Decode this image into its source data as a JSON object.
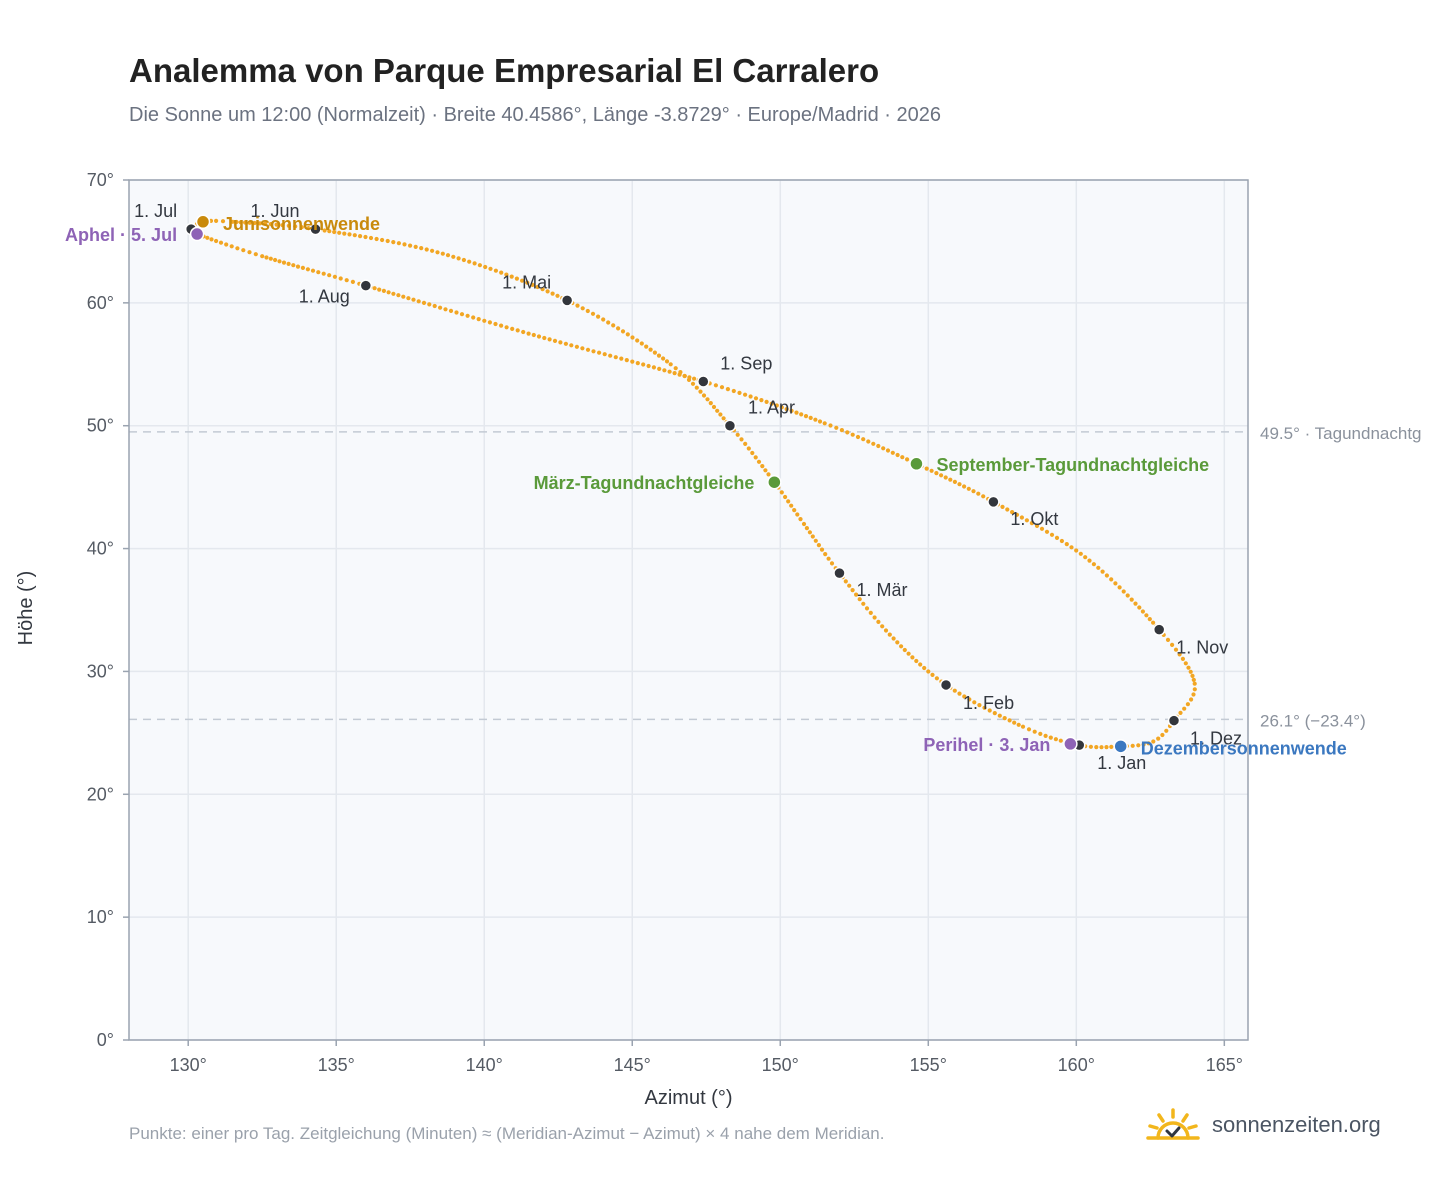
{
  "title": "Analemma von Parque Empresarial El Carralero",
  "subtitle": "Die Sonne um 12:00 (Normalzeit) · Breite 40.4586°, Länge -3.8729° · Europe/Madrid · 2026",
  "footnote": "Punkte: einer pro Tag. Zeitgleichung (Minuten) ≈ (Meridian-Azimut − Azimut) × 4 nahe dem Meridian.",
  "brand": {
    "name": "sonnenzeiten.org",
    "icon": "sun-check-icon"
  },
  "colors": {
    "curve": "#f2a623",
    "month_marker": "#33363c",
    "solstice_june": "#c98a0c",
    "solstice_december": "#3b78c0",
    "equinox": "#5a9a3a",
    "perihelion_aphelion": "#8e63b6",
    "reference_line": "#c3cad4",
    "plot_background": "#f7f9fc",
    "grid": "#e4e8ee"
  },
  "chart_data": {
    "type": "scatter",
    "xlabel": "Azimut (°)",
    "ylabel": "Höhe (°)",
    "xlim": [
      128,
      165.8
    ],
    "ylim": [
      0,
      70
    ],
    "x_ticks": [
      {
        "value": 130,
        "label": "130°"
      },
      {
        "value": 135,
        "label": "135°"
      },
      {
        "value": 140,
        "label": "140°"
      },
      {
        "value": 145,
        "label": "145°"
      },
      {
        "value": 150,
        "label": "150°"
      },
      {
        "value": 155,
        "label": "155°"
      },
      {
        "value": 160,
        "label": "160°"
      },
      {
        "value": 165,
        "label": "165°"
      }
    ],
    "y_ticks": [
      {
        "value": 0,
        "label": "0°"
      },
      {
        "value": 10,
        "label": "10°"
      },
      {
        "value": 20,
        "label": "20°"
      },
      {
        "value": 30,
        "label": "30°"
      },
      {
        "value": 40,
        "label": "40°"
      },
      {
        "value": 50,
        "label": "50°"
      },
      {
        "value": 60,
        "label": "60°"
      },
      {
        "value": 70,
        "label": "70°"
      }
    ],
    "grid": true,
    "month_points": [
      {
        "label": "1. Jan",
        "az": 160.1,
        "alt": 24.0
      },
      {
        "label": "1. Feb",
        "az": 155.6,
        "alt": 28.9
      },
      {
        "label": "1. Mär",
        "az": 152.0,
        "alt": 38.0
      },
      {
        "label": "1. Apr",
        "az": 148.3,
        "alt": 50.0
      },
      {
        "label": "1. Mai",
        "az": 142.8,
        "alt": 60.2
      },
      {
        "label": "1. Jun",
        "az": 134.3,
        "alt": 66.0
      },
      {
        "label": "1. Jul",
        "az": 130.1,
        "alt": 66.0
      },
      {
        "label": "1. Aug",
        "az": 136.0,
        "alt": 61.4
      },
      {
        "label": "1. Sep",
        "az": 147.4,
        "alt": 53.6
      },
      {
        "label": "1. Okt",
        "az": 157.2,
        "alt": 43.8
      },
      {
        "label": "1. Nov",
        "az": 162.8,
        "alt": 33.4
      },
      {
        "label": "1. Dez",
        "az": 163.3,
        "alt": 26.0
      }
    ],
    "events": [
      {
        "label": "Junisonnenwende",
        "az": 130.5,
        "alt": 66.6,
        "kind": "solstice_june"
      },
      {
        "label": "Dezembersonnenwende",
        "az": 161.5,
        "alt": 23.9,
        "kind": "solstice_december"
      },
      {
        "label": "März-Tagundnachtgleiche",
        "az": 149.8,
        "alt": 45.4,
        "kind": "equinox"
      },
      {
        "label": "September-Tagundnachtgleiche",
        "az": 154.6,
        "alt": 46.9,
        "kind": "equinox"
      },
      {
        "label": "Perihel · 3. Jan",
        "az": 159.8,
        "alt": 24.1,
        "kind": "perihelion_aphelion"
      },
      {
        "label": "Aphel · 5. Jul",
        "az": 130.3,
        "alt": 65.6,
        "kind": "perihelion_aphelion"
      }
    ],
    "reference_lines": [
      {
        "alt": 49.5,
        "label": "49.5° · Tagundnachtg"
      },
      {
        "alt": 26.1,
        "label": "26.1° (−23.4°)"
      }
    ],
    "curve_anchors": [
      {
        "az": 160.1,
        "alt": 24.0
      },
      {
        "az": 158.2,
        "alt": 25.5
      },
      {
        "az": 155.6,
        "alt": 28.9
      },
      {
        "az": 153.7,
        "alt": 33.0
      },
      {
        "az": 152.0,
        "alt": 38.0
      },
      {
        "az": 150.8,
        "alt": 42.0
      },
      {
        "az": 149.8,
        "alt": 45.4
      },
      {
        "az": 148.3,
        "alt": 50.0
      },
      {
        "az": 146.3,
        "alt": 55.0
      },
      {
        "az": 142.8,
        "alt": 60.2
      },
      {
        "az": 138.6,
        "alt": 64.0
      },
      {
        "az": 134.3,
        "alt": 66.0
      },
      {
        "az": 131.5,
        "alt": 66.6
      },
      {
        "az": 130.5,
        "alt": 66.6
      },
      {
        "az": 130.1,
        "alt": 66.0
      },
      {
        "az": 130.3,
        "alt": 65.6
      },
      {
        "az": 132.5,
        "alt": 63.8
      },
      {
        "az": 136.0,
        "alt": 61.4
      },
      {
        "az": 141.5,
        "alt": 57.5
      },
      {
        "az": 147.4,
        "alt": 53.6
      },
      {
        "az": 151.5,
        "alt": 50.2
      },
      {
        "az": 154.6,
        "alt": 46.9
      },
      {
        "az": 157.2,
        "alt": 43.8
      },
      {
        "az": 160.3,
        "alt": 39.3
      },
      {
        "az": 162.8,
        "alt": 33.4
      },
      {
        "az": 164.0,
        "alt": 29.0
      },
      {
        "az": 163.3,
        "alt": 26.0
      },
      {
        "az": 162.6,
        "alt": 24.3
      },
      {
        "az": 161.5,
        "alt": 23.9
      },
      {
        "az": 160.1,
        "alt": 24.0
      }
    ]
  }
}
